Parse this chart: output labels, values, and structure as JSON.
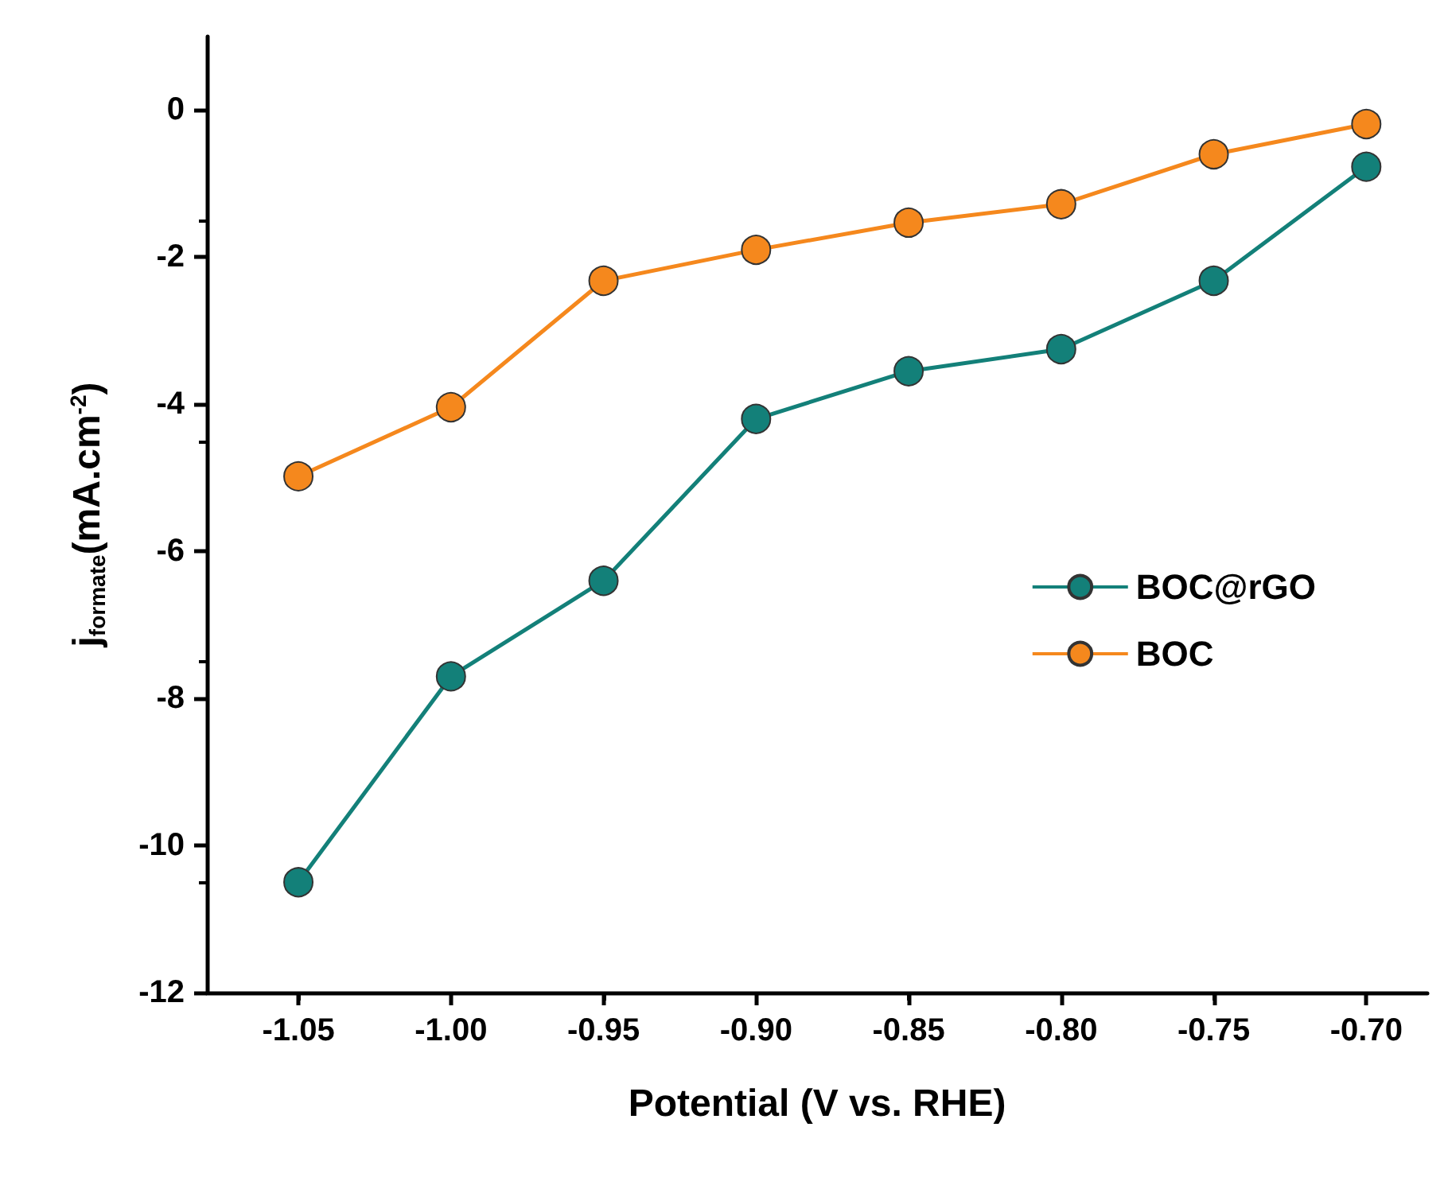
{
  "chart_data": {
    "type": "line",
    "xlabel": "Potential (V vs. RHE)",
    "ylabel": "j$_{formate}$(mA.cm$^{-2}$)",
    "x": [
      -1.05,
      -1.0,
      -0.95,
      -0.9,
      -0.85,
      -0.8,
      -0.75,
      -0.7
    ],
    "series": [
      {
        "name": "BOC@rGO",
        "color": "#138079",
        "values": [
          -10.5,
          -7.7,
          -6.4,
          -4.2,
          -3.55,
          -3.25,
          -2.32,
          -0.77
        ]
      },
      {
        "name": "BOC",
        "color": "#f5881d",
        "values": [
          -4.98,
          -4.04,
          -2.32,
          -1.9,
          -1.53,
          -1.28,
          -0.6,
          -0.19
        ]
      }
    ],
    "xlim": [
      -1.08,
      -0.68
    ],
    "ylim": [
      -12,
      1
    ],
    "xticks": [
      {
        "value": -1.05,
        "label": "-1.05"
      },
      {
        "value": -1.0,
        "label": "-1.00"
      },
      {
        "value": -0.95,
        "label": "-0.95"
      },
      {
        "value": -0.9,
        "label": "-0.90"
      },
      {
        "value": -0.85,
        "label": "-0.85"
      },
      {
        "value": -0.8,
        "label": "-0.80"
      },
      {
        "value": -0.75,
        "label": "-0.75"
      },
      {
        "value": -0.7,
        "label": "-0.70"
      }
    ],
    "yticks": [
      -12,
      -10,
      -8,
      -6,
      -4,
      -2,
      0
    ],
    "grid": false,
    "legend": "right",
    "marker": "circle",
    "line_style": "solid"
  }
}
